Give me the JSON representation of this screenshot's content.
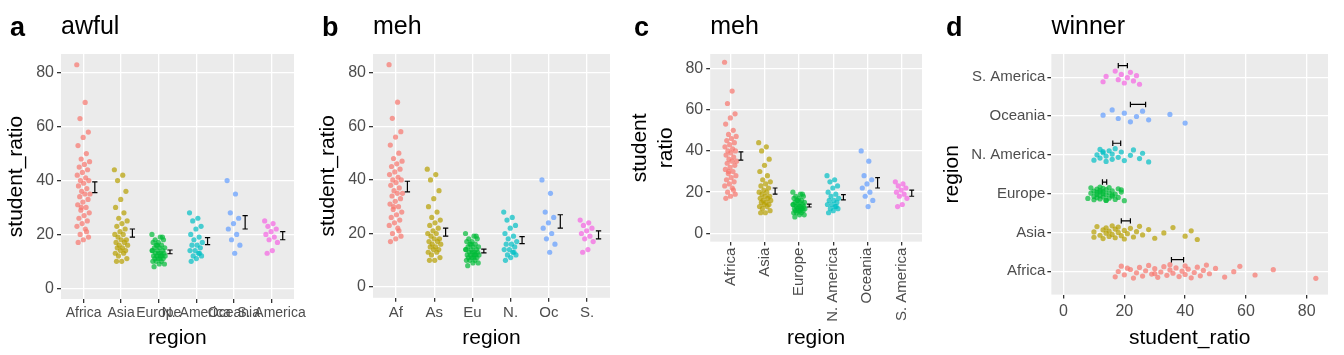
{
  "chart_data": [
    {
      "panel": "a",
      "type": "scatter",
      "title": "awful",
      "x_label": "region",
      "y_label": "student_ratio",
      "categories": [
        "Africa",
        "Asia",
        "Europe",
        "N. America",
        "Oceania",
        "S. America"
      ],
      "colors": [
        "#F8766D",
        "#B79F00",
        "#00BA38",
        "#00BFC4",
        "#619CFF",
        "#F564E3"
      ],
      "values": [
        [
          83,
          69,
          63,
          58,
          56,
          53,
          50,
          48,
          47,
          46,
          45,
          44,
          43,
          42,
          41,
          40,
          40,
          39,
          38,
          37,
          36,
          35,
          35,
          34,
          33,
          32,
          31,
          30,
          29,
          28,
          27,
          26,
          25,
          24,
          23,
          22,
          20,
          19,
          18,
          17,
          21,
          30
        ],
        [
          44,
          42,
          40,
          36,
          33,
          30,
          28,
          26,
          25,
          24,
          23,
          22,
          21,
          20,
          20,
          19,
          18,
          18,
          17,
          17,
          16,
          16,
          15,
          15,
          14,
          14,
          13,
          13,
          12,
          11,
          10,
          10
        ],
        [
          20,
          19,
          18,
          18,
          17,
          17,
          16,
          16,
          15,
          15,
          15,
          14,
          14,
          14,
          13,
          13,
          13,
          13,
          12,
          12,
          12,
          12,
          11,
          11,
          11,
          11,
          10,
          10,
          10,
          9,
          9,
          8,
          19,
          16,
          14,
          12
        ],
        [
          28,
          26,
          25,
          23,
          22,
          20,
          19,
          18,
          17,
          16,
          16,
          15,
          14,
          14,
          13,
          12,
          12,
          11,
          10,
          13
        ],
        [
          40,
          35,
          28,
          26,
          24,
          22,
          20,
          18,
          16,
          13
        ],
        [
          25,
          24,
          23,
          22,
          21,
          20,
          19,
          18,
          17,
          14,
          13
        ]
      ],
      "means": [
        37.5,
        20.5,
        13.5,
        17.5,
        24.5,
        19.5
      ],
      "errors": [
        2,
        1.5,
        0.7,
        1.3,
        2.5,
        1.5
      ],
      "ylim": [
        -4,
        87
      ],
      "yticks": [
        0,
        20,
        40,
        60,
        80
      ],
      "grid": true
    },
    {
      "panel": "b",
      "type": "scatter",
      "title": "meh",
      "x_label": "region",
      "y_label": "student_ratio",
      "categories": [
        "Af",
        "As",
        "Eu",
        "N.",
        "Oc",
        "S."
      ],
      "colors": [
        "#F8766D",
        "#B79F00",
        "#00BA38",
        "#00BFC4",
        "#619CFF",
        "#F564E3"
      ],
      "values": [
        [
          83,
          69,
          63,
          58,
          56,
          53,
          50,
          48,
          47,
          46,
          45,
          44,
          43,
          42,
          41,
          40,
          40,
          39,
          38,
          37,
          36,
          35,
          35,
          34,
          33,
          32,
          31,
          30,
          29,
          28,
          27,
          26,
          25,
          24,
          23,
          22,
          20,
          19,
          18,
          17,
          21,
          30
        ],
        [
          44,
          42,
          40,
          36,
          33,
          30,
          28,
          26,
          25,
          24,
          23,
          22,
          21,
          20,
          20,
          19,
          18,
          18,
          17,
          17,
          16,
          16,
          15,
          15,
          14,
          14,
          13,
          13,
          12,
          11,
          10,
          10
        ],
        [
          20,
          19,
          18,
          18,
          17,
          17,
          16,
          16,
          15,
          15,
          15,
          14,
          14,
          14,
          13,
          13,
          13,
          13,
          12,
          12,
          12,
          12,
          11,
          11,
          11,
          11,
          10,
          10,
          10,
          9,
          9,
          8,
          19,
          16,
          14,
          12
        ],
        [
          28,
          26,
          25,
          23,
          22,
          20,
          19,
          18,
          17,
          16,
          16,
          15,
          14,
          14,
          13,
          12,
          12,
          11,
          10,
          13
        ],
        [
          40,
          35,
          28,
          26,
          24,
          22,
          20,
          18,
          16,
          13
        ],
        [
          25,
          24,
          23,
          22,
          21,
          20,
          19,
          18,
          17,
          14,
          13
        ]
      ],
      "means": [
        37.5,
        20.5,
        13.5,
        17.5,
        24.5,
        19.5
      ],
      "errors": [
        2,
        1.5,
        0.7,
        1.3,
        2.5,
        1.5
      ],
      "ylim": [
        -4,
        87
      ],
      "yticks": [
        0,
        20,
        40,
        60,
        80
      ],
      "grid": true
    },
    {
      "panel": "c",
      "type": "scatter",
      "title": "meh",
      "x_label": "region",
      "y_label": "student\nratio",
      "categories": [
        "Africa",
        "Asia",
        "Europe",
        "N. America",
        "Oceania",
        "S. America"
      ],
      "colors": [
        "#F8766D",
        "#B79F00",
        "#00BA38",
        "#00BFC4",
        "#619CFF",
        "#F564E3"
      ],
      "values": [
        [
          83,
          69,
          63,
          58,
          56,
          53,
          50,
          48,
          47,
          46,
          45,
          44,
          43,
          42,
          41,
          40,
          40,
          39,
          38,
          37,
          36,
          35,
          35,
          34,
          33,
          32,
          31,
          30,
          29,
          28,
          27,
          26,
          25,
          24,
          23,
          22,
          20,
          19,
          18,
          17,
          21,
          30
        ],
        [
          44,
          42,
          40,
          36,
          33,
          30,
          28,
          26,
          25,
          24,
          23,
          22,
          21,
          20,
          20,
          19,
          18,
          18,
          17,
          17,
          16,
          16,
          15,
          15,
          14,
          14,
          13,
          13,
          12,
          11,
          10,
          10
        ],
        [
          20,
          19,
          18,
          18,
          17,
          17,
          16,
          16,
          15,
          15,
          15,
          14,
          14,
          14,
          13,
          13,
          13,
          13,
          12,
          12,
          12,
          12,
          11,
          11,
          11,
          11,
          10,
          10,
          10,
          9,
          9,
          8,
          19,
          16,
          14,
          12
        ],
        [
          28,
          26,
          25,
          23,
          22,
          20,
          19,
          18,
          17,
          16,
          16,
          15,
          14,
          14,
          13,
          12,
          12,
          11,
          10,
          13
        ],
        [
          40,
          35,
          28,
          26,
          24,
          22,
          20,
          18,
          16,
          13
        ],
        [
          25,
          24,
          23,
          22,
          21,
          20,
          19,
          18,
          17,
          14,
          13
        ]
      ],
      "means": [
        37.5,
        20.5,
        13.5,
        17.5,
        24.5,
        19.5
      ],
      "errors": [
        2,
        1.5,
        0.7,
        1.3,
        2.5,
        1.5
      ],
      "ylim": [
        -4,
        87
      ],
      "yticks": [
        0,
        20,
        40,
        60,
        80
      ],
      "grid": true
    },
    {
      "panel": "d",
      "type": "scatter",
      "title": "winner",
      "x_label": "student_ratio",
      "y_label": "region",
      "orientation": "horizontal",
      "categories": [
        "Africa",
        "Asia",
        "Europe",
        "N. America",
        "Oceania",
        "S. America"
      ],
      "colors": [
        "#F8766D",
        "#B79F00",
        "#00BA38",
        "#00BFC4",
        "#619CFF",
        "#F564E3"
      ],
      "values": [
        [
          83,
          69,
          63,
          58,
          56,
          53,
          50,
          48,
          47,
          46,
          45,
          44,
          43,
          42,
          41,
          40,
          40,
          39,
          38,
          37,
          36,
          35,
          35,
          34,
          33,
          32,
          31,
          30,
          29,
          28,
          27,
          26,
          25,
          24,
          23,
          22,
          20,
          19,
          18,
          17,
          21,
          30
        ],
        [
          44,
          42,
          40,
          36,
          33,
          30,
          28,
          26,
          25,
          24,
          23,
          22,
          21,
          20,
          20,
          19,
          18,
          18,
          17,
          17,
          16,
          16,
          15,
          15,
          14,
          14,
          13,
          13,
          12,
          11,
          10,
          10
        ],
        [
          20,
          19,
          18,
          18,
          17,
          17,
          16,
          16,
          15,
          15,
          15,
          14,
          14,
          14,
          13,
          13,
          13,
          13,
          12,
          12,
          12,
          12,
          11,
          11,
          11,
          11,
          10,
          10,
          10,
          9,
          9,
          8,
          19,
          16,
          14,
          12
        ],
        [
          28,
          26,
          25,
          23,
          22,
          20,
          19,
          18,
          17,
          16,
          16,
          15,
          14,
          14,
          13,
          12,
          12,
          11,
          10,
          13
        ],
        [
          40,
          35,
          28,
          26,
          24,
          22,
          20,
          18,
          16,
          13
        ],
        [
          25,
          24,
          23,
          22,
          21,
          20,
          19,
          18,
          17,
          14,
          13
        ]
      ],
      "means": [
        37.5,
        20.5,
        13.5,
        17.5,
        24.5,
        19.5
      ],
      "errors": [
        2,
        1.5,
        0.7,
        1.3,
        2.5,
        1.5
      ],
      "xlim": [
        -4,
        87
      ],
      "xticks": [
        0,
        20,
        40,
        60,
        80
      ],
      "grid": true
    }
  ]
}
